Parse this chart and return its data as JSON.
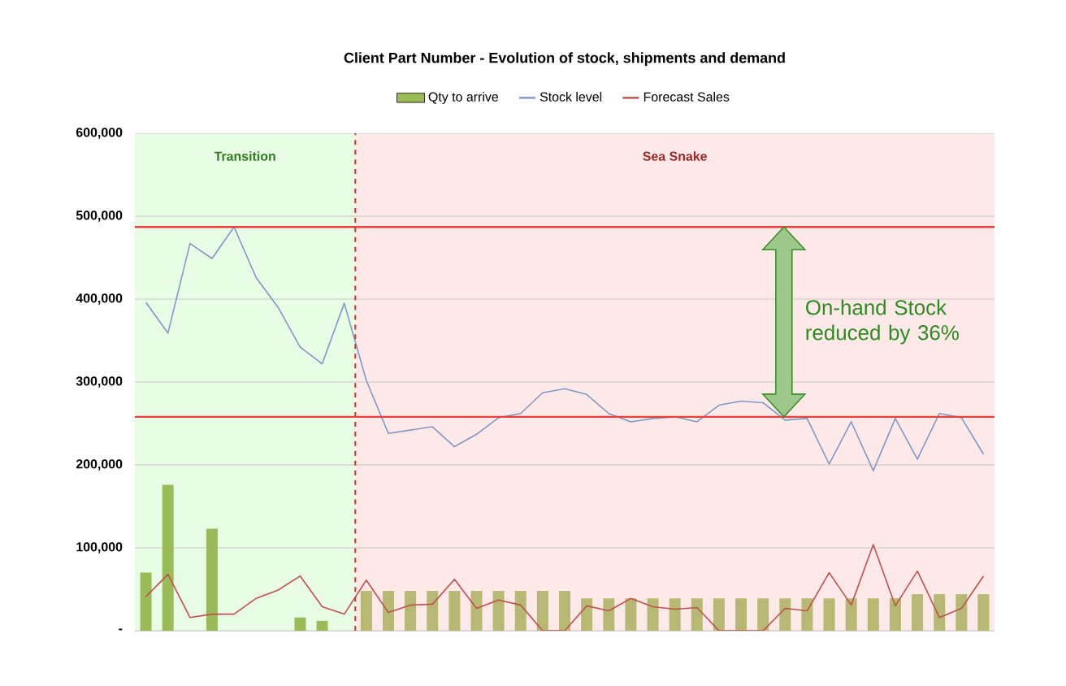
{
  "chart_data": {
    "type": "bar",
    "title": "Client Part Number - Evolution of stock, shipments and demand",
    "categories": [
      null,
      null,
      null,
      null,
      null,
      null,
      null,
      null,
      null,
      null,
      null,
      null,
      null,
      null,
      null,
      null,
      null,
      null,
      null,
      null,
      null,
      null,
      null,
      null,
      null,
      null,
      null,
      null,
      null,
      null,
      null,
      null,
      null,
      null,
      null,
      null,
      null,
      null,
      null
    ],
    "series": [
      {
        "name": "Qty to arrive",
        "color": "#9bbb59",
        "colors": [
          "#9bbb59",
          "#9bbb59",
          "#9bbb59",
          "#9bbb59",
          "#9bbb59",
          "#9bbb59",
          "#9bbb59",
          "#9bbb59",
          "#9bbb59",
          "#9bbb59",
          "#b7b873",
          "#b7b873",
          "#b7b873",
          "#b7b873",
          "#b7b873",
          "#b7b873",
          "#b7b873",
          "#b7b873",
          "#b7b873",
          "#b7b873",
          "#b7b873",
          "#b7b873",
          "#b7b873",
          "#b7b873",
          "#b7b873",
          "#b7b873",
          "#b7b873",
          "#b7b873",
          "#b7b873",
          "#b7b873",
          "#b7b873",
          "#b7b873",
          "#b7b873",
          "#b7b873",
          "#b7b873",
          "#b7b873",
          "#b7b873",
          "#b7b873",
          "#b7b873"
        ],
        "values": [
          70000,
          176000,
          null,
          123000,
          null,
          null,
          null,
          16000,
          12000,
          null,
          48000,
          48000,
          48000,
          48000,
          48000,
          48000,
          48000,
          48000,
          48000,
          48000,
          39000,
          39000,
          39000,
          39000,
          39000,
          39000,
          39000,
          39000,
          39000,
          39000,
          39000,
          39000,
          39000,
          39000,
          39000,
          44000,
          44000,
          44000,
          44000
        ]
      },
      {
        "name": "Stock level",
        "type": "line",
        "color": "#7f98c8",
        "values": [
          396000,
          359000,
          467000,
          449000,
          487000,
          426000,
          390000,
          342000,
          322000,
          395000,
          302000,
          238000,
          242000,
          246000,
          222000,
          237000,
          257000,
          262000,
          287000,
          292000,
          285000,
          262000,
          252000,
          256000,
          258000,
          252000,
          272000,
          277000,
          275000,
          254000,
          256000,
          201000,
          252000,
          193000,
          256000,
          207000,
          262000,
          257000,
          213000
        ]
      },
      {
        "name": "Forecast Sales",
        "type": "line",
        "color": "#c0504d",
        "values": [
          41000,
          68000,
          16000,
          20000,
          20000,
          39000,
          49000,
          66000,
          29000,
          20000,
          61000,
          22000,
          31000,
          32000,
          62000,
          27000,
          37000,
          31000,
          0,
          0,
          30000,
          24000,
          39000,
          29000,
          26000,
          28000,
          0,
          0,
          0,
          27000,
          24000,
          70000,
          31000,
          104000,
          30000,
          72000,
          16000,
          27000,
          66000
        ]
      }
    ],
    "ylim": [
      0,
      600000
    ],
    "yticks": [
      {
        "value": 0,
        "label": "-"
      },
      {
        "value": 100000,
        "label": "100,000"
      },
      {
        "value": 200000,
        "label": "200,000"
      },
      {
        "value": 300000,
        "label": "300,000"
      },
      {
        "value": 400000,
        "label": "400,000"
      },
      {
        "value": 500000,
        "label": "500,000"
      },
      {
        "value": 600000,
        "label": "600,000"
      }
    ],
    "grid": "y",
    "legend": "top",
    "ref_lines": [
      {
        "axis": "y",
        "value": 487000,
        "color": "#e8403a"
      },
      {
        "axis": "y",
        "value": 258000,
        "color": "#e8403a"
      }
    ],
    "annotations": [
      "Transition",
      "Sea Snake",
      "On-hand Stock reduced by 36%"
    ]
  }
}
